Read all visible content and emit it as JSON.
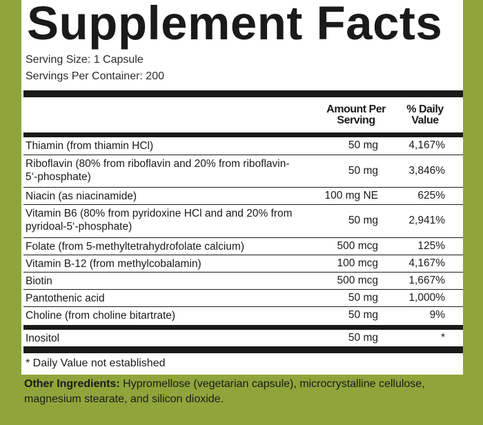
{
  "title": "Supplement Facts",
  "serving_size": "Serving Size: 1 Capsule",
  "servings_per_container": "Servings Per Container: 200",
  "headers": {
    "amount": "Amount Per Serving",
    "dv": "% Daily Value"
  },
  "rows": [
    {
      "name": "Thiamin (from thiamin HCl)",
      "amount": "50 mg",
      "dv": "4,167%"
    },
    {
      "name": "Riboflavin (80% from riboflavin and 20% from riboflavin-5‘-phosphate)",
      "amount": "50 mg",
      "dv": "3,846%"
    },
    {
      "name": "Niacin (as niacinamide)",
      "amount": "100 mg NE",
      "dv": "625%"
    },
    {
      "name": "Vitamin B6 (80% from pyridoxine HCl and and 20% from pyridoal-5‘-phosphate)",
      "amount": "50 mg",
      "dv": "2,941%"
    },
    {
      "name": "Folate (from 5-methyltetrahydrofolate calcium)",
      "amount": "500 mcg",
      "dv": "125%"
    },
    {
      "name": "Vitamin B-12 (from methylcobalamin)",
      "amount": "100 mcg",
      "dv": "4,167%"
    },
    {
      "name": "Biotin",
      "amount": "500 mcg",
      "dv": "1,667%"
    },
    {
      "name": "Pantothenic acid",
      "amount": "50 mg",
      "dv": "1,000%"
    },
    {
      "name": "Choline (from choline bitartrate)",
      "amount": "50 mg",
      "dv": "9%"
    },
    {
      "name": "Inositol",
      "amount": "50 mg",
      "dv": "*"
    }
  ],
  "footnote": "* Daily Value not established",
  "other_ingredients": {
    "label": "Other Ingredients:",
    "text": " Hypromellose (vegetarian capsule), microcrystalline cellulose, magnesium stearate, and silicon dioxide."
  },
  "colors": {
    "background": "#8fa53b",
    "ink": "#1a1a1a"
  }
}
